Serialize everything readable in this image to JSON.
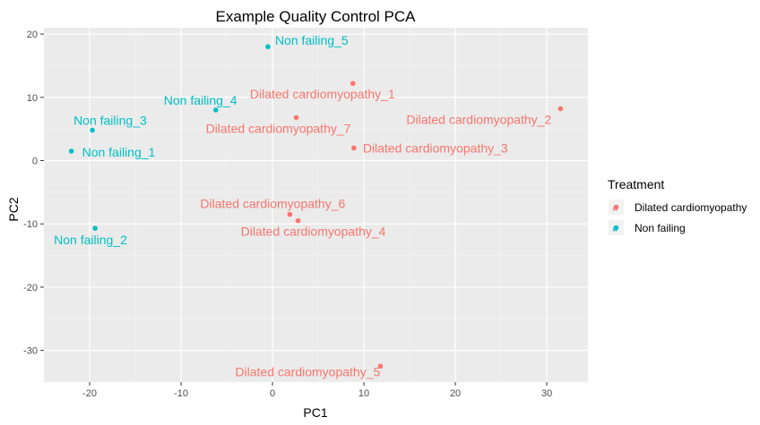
{
  "chart_data": {
    "type": "scatter",
    "title": "Example Quality Control PCA",
    "xlabel": "PC1",
    "ylabel": "PC2",
    "xlim": [
      -25,
      34.5
    ],
    "ylim": [
      -35,
      21
    ],
    "xticks": [
      -20,
      -10,
      0,
      10,
      20,
      30
    ],
    "yticks": [
      20,
      10,
      0,
      -10,
      -20,
      -30
    ],
    "grid": true,
    "legend": {
      "title": "Treatment",
      "position": "right",
      "entries": [
        {
          "name": "Dilated cardiomyopathy",
          "color": "#F8766D"
        },
        {
          "name": "Non failing",
          "color": "#00BFC4"
        }
      ]
    },
    "points": [
      {
        "label": "Non failing_5",
        "x": -0.5,
        "y": 18.0,
        "group": "Non failing"
      },
      {
        "label": "Dilated cardiomyopathy_1",
        "x": 8.8,
        "y": 12.2,
        "group": "Dilated cardiomyopathy"
      },
      {
        "label": "Non failing_4",
        "x": -6.2,
        "y": 8.0,
        "group": "Non failing"
      },
      {
        "label": "Dilated cardiomyopathy_2",
        "x": 31.5,
        "y": 8.2,
        "group": "Dilated cardiomyopathy"
      },
      {
        "label": "Dilated cardiomyopathy_7",
        "x": 2.6,
        "y": 6.8,
        "group": "Dilated cardiomyopathy"
      },
      {
        "label": "Non failing_3",
        "x": -19.7,
        "y": 4.8,
        "group": "Non failing"
      },
      {
        "label": "Dilated cardiomyopathy_3",
        "x": 8.9,
        "y": 2.0,
        "group": "Dilated cardiomyopathy"
      },
      {
        "label": "Non failing_1",
        "x": -22.0,
        "y": 1.5,
        "group": "Non failing"
      },
      {
        "label": "Dilated cardiomyopathy_6",
        "x": 1.9,
        "y": -8.5,
        "group": "Dilated cardiomyopathy"
      },
      {
        "label": "Dilated cardiomyopathy_4",
        "x": 2.8,
        "y": -9.5,
        "group": "Dilated cardiomyopathy"
      },
      {
        "label": "Non failing_2",
        "x": -19.4,
        "y": -10.7,
        "group": "Non failing"
      },
      {
        "label": "Dilated cardiomyopathy_5",
        "x": 11.8,
        "y": -32.5,
        "group": "Dilated cardiomyopathy"
      }
    ]
  }
}
